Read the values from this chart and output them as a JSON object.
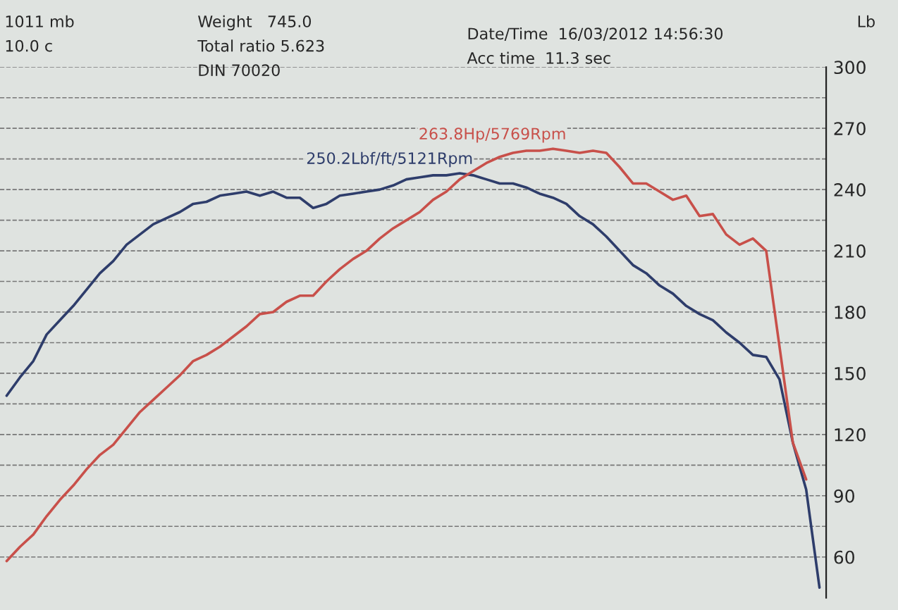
{
  "chart_data": {
    "type": "line",
    "ylabel": "Lb",
    "categories": [
      null,
      null,
      null,
      null,
      null,
      null,
      null,
      null,
      null,
      null,
      null,
      null,
      null,
      null,
      null,
      null,
      null,
      null,
      null,
      null,
      null,
      null,
      null,
      null,
      null,
      null,
      null,
      null,
      null,
      null,
      null,
      null,
      null,
      null,
      null,
      null,
      null,
      null,
      null,
      null,
      null,
      null,
      null,
      null,
      null,
      null,
      null,
      null,
      null,
      null,
      null,
      null,
      null,
      null,
      null,
      null,
      null,
      null,
      null,
      null,
      null,
      null
    ],
    "series": [
      {
        "color": "#2e3d6b",
        "values": [
          139,
          148,
          156,
          169,
          176,
          183,
          191,
          199,
          205,
          213,
          218,
          223,
          226,
          229,
          233,
          234,
          237,
          238,
          239,
          237,
          239,
          236,
          236,
          231,
          233,
          237,
          238,
          239,
          240,
          242,
          245,
          246,
          247,
          247,
          248,
          247,
          245,
          243,
          243,
          241,
          238,
          236,
          233,
          227,
          223,
          217,
          210,
          203,
          199,
          193,
          189,
          183,
          179,
          176,
          170,
          165,
          159,
          158,
          147,
          116,
          93,
          45
        ]
      },
      {
        "color": "#c8504a",
        "values": [
          58,
          65,
          71,
          80,
          88,
          95,
          103,
          110,
          115,
          123,
          131,
          137,
          143,
          149,
          156,
          159,
          163,
          168,
          173,
          179,
          180,
          185,
          188,
          188,
          195,
          201,
          206,
          210,
          216,
          221,
          225,
          229,
          235,
          239,
          245,
          249,
          253,
          256,
          258,
          259,
          259,
          260,
          259,
          258,
          259,
          258,
          251,
          243,
          243,
          239,
          235,
          237,
          227,
          228,
          218,
          213,
          216,
          210,
          163,
          116,
          98,
          null
        ]
      }
    ],
    "ylim": [
      40,
      300
    ],
    "yticks": [
      60,
      {
        "value": 75,
        "label": null
      },
      90,
      {
        "value": 105,
        "label": null
      },
      120,
      {
        "value": 135,
        "label": null
      },
      150,
      {
        "value": 165,
        "label": null
      },
      180,
      {
        "value": 195,
        "label": null
      },
      210,
      {
        "value": 225,
        "label": null
      },
      240,
      {
        "value": 255,
        "label": null
      },
      270,
      {
        "value": 285,
        "label": null
      },
      300
    ],
    "grid": "y",
    "line_style": "solid",
    "marker": "none",
    "annotations": [
      "1011 mb",
      "10.0 c",
      "Weight   745.0",
      "Total ratio 5.623",
      "DIN 70020",
      "Date/Time  16/03/2012 14:56:30",
      "Acc time  11.3 sec",
      "250.2Lbf/ft/5121Rpm",
      "263.8Hp/5769Rpm"
    ]
  }
}
